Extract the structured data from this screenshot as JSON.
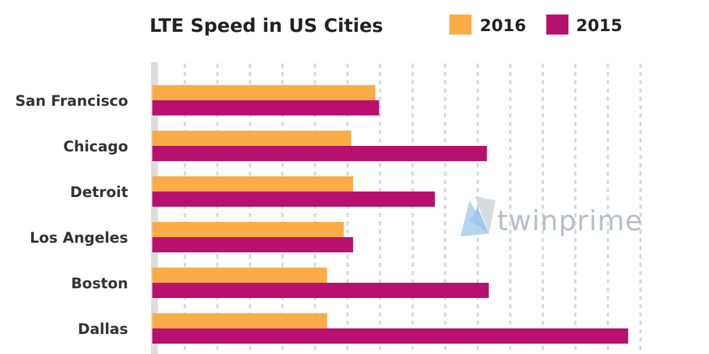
{
  "chart_data": {
    "type": "bar",
    "orientation": "horizontal",
    "title": "LTE Speed in US Cities",
    "categories": [
      "San Francisco",
      "Chicago",
      "Detroit",
      "Los Angeles",
      "Boston",
      "Dallas"
    ],
    "series": [
      {
        "name": "2016",
        "color": "#fbac46",
        "values": [
          12.0,
          10.7,
          10.8,
          10.3,
          9.4,
          9.4
        ]
      },
      {
        "name": "2015",
        "color": "#b8106e",
        "values": [
          12.2,
          18.0,
          15.2,
          10.8,
          18.1,
          25.6
        ]
      }
    ],
    "xlabel": "",
    "ylabel": "",
    "xlim": [
      0,
      26
    ],
    "grid": true,
    "legend": "top-right"
  },
  "watermark": {
    "text": "twinprime"
  }
}
